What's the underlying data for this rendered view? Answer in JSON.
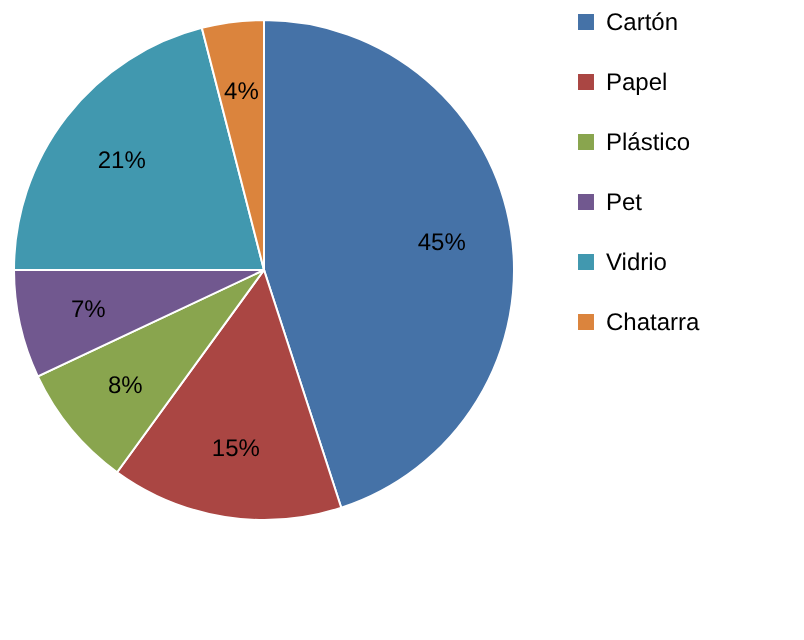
{
  "chart_data": {
    "type": "pie",
    "categories": [
      "Cartón",
      "Papel",
      "Plástico",
      "Pet",
      "Vidrio",
      "Chatarra"
    ],
    "values": [
      45,
      15,
      8,
      7,
      21,
      4
    ],
    "colors": [
      "#4572a7",
      "#aa4643",
      "#89a54e",
      "#71588f",
      "#4198af",
      "#db843d"
    ],
    "value_labels": [
      "45%",
      "15%",
      "8%",
      "7%",
      "21%",
      "4%"
    ],
    "legend": "right"
  }
}
